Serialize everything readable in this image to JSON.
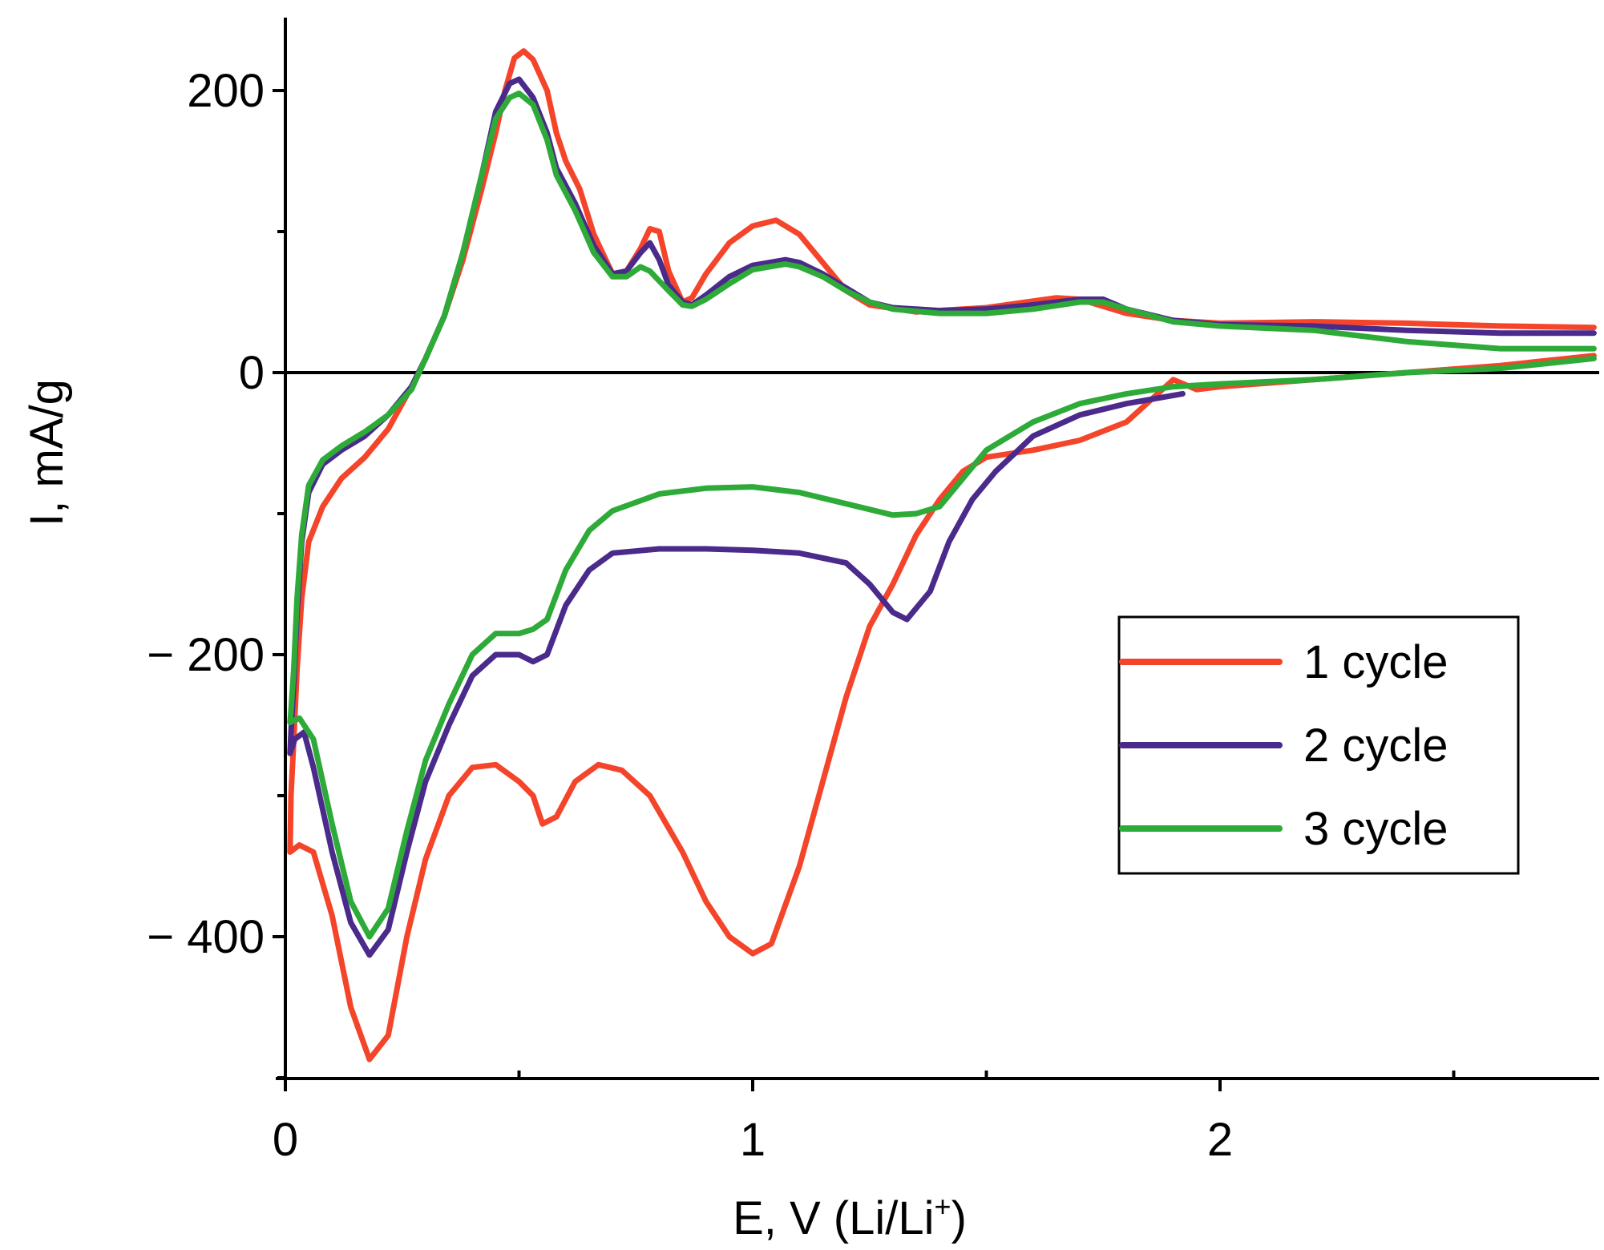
{
  "chart_data": {
    "type": "line",
    "title": "",
    "xlabel": "E, V (Li/Li",
    "xlabel_sup": "+",
    "xlabel_end": ")",
    "ylabel": "I, mA/g",
    "xlim": [
      0,
      2.8
    ],
    "ylim": [
      -500,
      250
    ],
    "x_ticks": [
      0,
      1,
      2
    ],
    "x_tick_labels": [
      "0",
      "1",
      "2"
    ],
    "x_minor_ticks": [
      0.5,
      1.5,
      2.5
    ],
    "y_ticks": [
      200,
      0,
      -200,
      -400
    ],
    "y_tick_labels": [
      "200",
      "0",
      "− 200",
      "− 400"
    ],
    "y_minor_ticks": [
      100,
      -100,
      -300,
      -500
    ],
    "zero_line": true,
    "legend": {
      "position": "right",
      "entries": [
        "1 cycle",
        "2 cycle",
        "3 cycle"
      ]
    },
    "series": [
      {
        "name": "1 cycle",
        "color": "#f4442a",
        "points": [
          [
            2.8,
            32
          ],
          [
            2.6,
            33
          ],
          [
            2.4,
            35
          ],
          [
            2.2,
            36
          ],
          [
            2.0,
            35
          ],
          [
            1.9,
            37
          ],
          [
            1.8,
            42
          ],
          [
            1.7,
            52
          ],
          [
            1.65,
            53
          ],
          [
            1.5,
            46
          ],
          [
            1.35,
            43
          ],
          [
            1.25,
            48
          ],
          [
            1.2,
            58
          ],
          [
            1.15,
            78
          ],
          [
            1.1,
            98
          ],
          [
            1.05,
            108
          ],
          [
            1.0,
            104
          ],
          [
            0.95,
            92
          ],
          [
            0.9,
            70
          ],
          [
            0.87,
            53
          ],
          [
            0.85,
            50
          ],
          [
            0.82,
            72
          ],
          [
            0.8,
            100
          ],
          [
            0.78,
            102
          ],
          [
            0.76,
            88
          ],
          [
            0.73,
            72
          ],
          [
            0.7,
            70
          ],
          [
            0.66,
            98
          ],
          [
            0.63,
            130
          ],
          [
            0.6,
            150
          ],
          [
            0.58,
            170
          ],
          [
            0.56,
            200
          ],
          [
            0.53,
            222
          ],
          [
            0.51,
            228
          ],
          [
            0.49,
            223
          ],
          [
            0.47,
            200
          ],
          [
            0.45,
            170
          ],
          [
            0.42,
            130
          ],
          [
            0.38,
            80
          ],
          [
            0.34,
            40
          ],
          [
            0.3,
            10
          ],
          [
            0.27,
            -10
          ],
          [
            0.22,
            -40
          ],
          [
            0.17,
            -60
          ],
          [
            0.12,
            -75
          ],
          [
            0.08,
            -95
          ],
          [
            0.05,
            -120
          ],
          [
            0.035,
            -160
          ],
          [
            0.025,
            -210
          ],
          [
            0.018,
            -260
          ],
          [
            0.012,
            -300
          ],
          [
            0.01,
            -340
          ],
          [
            0.03,
            -335
          ],
          [
            0.06,
            -340
          ],
          [
            0.1,
            -385
          ],
          [
            0.14,
            -450
          ],
          [
            0.18,
            -487
          ],
          [
            0.22,
            -470
          ],
          [
            0.26,
            -400
          ],
          [
            0.3,
            -345
          ],
          [
            0.35,
            -300
          ],
          [
            0.4,
            -280
          ],
          [
            0.45,
            -278
          ],
          [
            0.5,
            -290
          ],
          [
            0.53,
            -300
          ],
          [
            0.55,
            -320
          ],
          [
            0.58,
            -315
          ],
          [
            0.62,
            -290
          ],
          [
            0.67,
            -278
          ],
          [
            0.72,
            -282
          ],
          [
            0.78,
            -300
          ],
          [
            0.85,
            -340
          ],
          [
            0.9,
            -375
          ],
          [
            0.95,
            -400
          ],
          [
            1.0,
            -412
          ],
          [
            1.04,
            -405
          ],
          [
            1.1,
            -350
          ],
          [
            1.15,
            -290
          ],
          [
            1.2,
            -230
          ],
          [
            1.25,
            -180
          ],
          [
            1.3,
            -150
          ],
          [
            1.35,
            -115
          ],
          [
            1.4,
            -90
          ],
          [
            1.45,
            -70
          ],
          [
            1.5,
            -60
          ],
          [
            1.6,
            -55
          ],
          [
            1.7,
            -48
          ],
          [
            1.8,
            -35
          ],
          [
            1.85,
            -20
          ],
          [
            1.9,
            -5
          ],
          [
            1.95,
            -12
          ],
          [
            2.0,
            -10
          ],
          [
            2.2,
            -5
          ],
          [
            2.4,
            0
          ],
          [
            2.6,
            5
          ],
          [
            2.8,
            12
          ]
        ]
      },
      {
        "name": "2 cycle",
        "color": "#4a2a8a",
        "points": [
          [
            2.8,
            28
          ],
          [
            2.6,
            28
          ],
          [
            2.4,
            30
          ],
          [
            2.2,
            33
          ],
          [
            2.0,
            34
          ],
          [
            1.9,
            37
          ],
          [
            1.8,
            45
          ],
          [
            1.75,
            52
          ],
          [
            1.7,
            52
          ],
          [
            1.6,
            48
          ],
          [
            1.5,
            45
          ],
          [
            1.4,
            44
          ],
          [
            1.3,
            46
          ],
          [
            1.25,
            50
          ],
          [
            1.2,
            60
          ],
          [
            1.15,
            70
          ],
          [
            1.1,
            78
          ],
          [
            1.07,
            80
          ],
          [
            1.0,
            76
          ],
          [
            0.95,
            68
          ],
          [
            0.9,
            55
          ],
          [
            0.87,
            48
          ],
          [
            0.85,
            50
          ],
          [
            0.82,
            62
          ],
          [
            0.8,
            80
          ],
          [
            0.78,
            92
          ],
          [
            0.76,
            85
          ],
          [
            0.73,
            72
          ],
          [
            0.7,
            70
          ],
          [
            0.66,
            90
          ],
          [
            0.62,
            120
          ],
          [
            0.58,
            145
          ],
          [
            0.56,
            170
          ],
          [
            0.53,
            195
          ],
          [
            0.5,
            208
          ],
          [
            0.48,
            205
          ],
          [
            0.45,
            185
          ],
          [
            0.42,
            140
          ],
          [
            0.38,
            85
          ],
          [
            0.34,
            40
          ],
          [
            0.3,
            10
          ],
          [
            0.27,
            -10
          ],
          [
            0.22,
            -30
          ],
          [
            0.17,
            -45
          ],
          [
            0.12,
            -55
          ],
          [
            0.08,
            -65
          ],
          [
            0.05,
            -85
          ],
          [
            0.035,
            -120
          ],
          [
            0.025,
            -170
          ],
          [
            0.018,
            -220
          ],
          [
            0.012,
            -255
          ],
          [
            0.01,
            -270
          ],
          [
            0.02,
            -260
          ],
          [
            0.04,
            -255
          ],
          [
            0.06,
            -280
          ],
          [
            0.1,
            -340
          ],
          [
            0.14,
            -390
          ],
          [
            0.18,
            -413
          ],
          [
            0.22,
            -395
          ],
          [
            0.26,
            -340
          ],
          [
            0.3,
            -290
          ],
          [
            0.35,
            -250
          ],
          [
            0.4,
            -215
          ],
          [
            0.45,
            -200
          ],
          [
            0.5,
            -200
          ],
          [
            0.53,
            -205
          ],
          [
            0.56,
            -200
          ],
          [
            0.6,
            -165
          ],
          [
            0.65,
            -140
          ],
          [
            0.7,
            -128
          ],
          [
            0.8,
            -125
          ],
          [
            0.9,
            -125
          ],
          [
            1.0,
            -126
          ],
          [
            1.1,
            -128
          ],
          [
            1.2,
            -135
          ],
          [
            1.25,
            -150
          ],
          [
            1.3,
            -170
          ],
          [
            1.33,
            -175
          ],
          [
            1.38,
            -155
          ],
          [
            1.42,
            -120
          ],
          [
            1.47,
            -90
          ],
          [
            1.52,
            -70
          ],
          [
            1.6,
            -45
          ],
          [
            1.7,
            -30
          ],
          [
            1.8,
            -22
          ],
          [
            1.92,
            -15
          ]
        ]
      },
      {
        "name": "3 cycle",
        "color": "#2daa38",
        "points": [
          [
            2.8,
            17
          ],
          [
            2.6,
            17
          ],
          [
            2.4,
            22
          ],
          [
            2.2,
            30
          ],
          [
            2.0,
            33
          ],
          [
            1.9,
            36
          ],
          [
            1.8,
            45
          ],
          [
            1.75,
            50
          ],
          [
            1.7,
            50
          ],
          [
            1.6,
            45
          ],
          [
            1.5,
            42
          ],
          [
            1.4,
            42
          ],
          [
            1.3,
            45
          ],
          [
            1.25,
            50
          ],
          [
            1.2,
            58
          ],
          [
            1.15,
            68
          ],
          [
            1.1,
            75
          ],
          [
            1.07,
            77
          ],
          [
            1.0,
            73
          ],
          [
            0.95,
            63
          ],
          [
            0.9,
            52
          ],
          [
            0.87,
            47
          ],
          [
            0.85,
            48
          ],
          [
            0.82,
            58
          ],
          [
            0.78,
            72
          ],
          [
            0.76,
            75
          ],
          [
            0.73,
            68
          ],
          [
            0.7,
            68
          ],
          [
            0.66,
            85
          ],
          [
            0.62,
            115
          ],
          [
            0.58,
            140
          ],
          [
            0.56,
            165
          ],
          [
            0.53,
            190
          ],
          [
            0.5,
            198
          ],
          [
            0.48,
            195
          ],
          [
            0.45,
            180
          ],
          [
            0.42,
            140
          ],
          [
            0.38,
            85
          ],
          [
            0.34,
            40
          ],
          [
            0.3,
            10
          ],
          [
            0.27,
            -12
          ],
          [
            0.22,
            -30
          ],
          [
            0.17,
            -42
          ],
          [
            0.12,
            -52
          ],
          [
            0.08,
            -62
          ],
          [
            0.05,
            -80
          ],
          [
            0.035,
            -115
          ],
          [
            0.025,
            -160
          ],
          [
            0.018,
            -210
          ],
          [
            0.012,
            -240
          ],
          [
            0.01,
            -248
          ],
          [
            0.03,
            -245
          ],
          [
            0.06,
            -260
          ],
          [
            0.1,
            -320
          ],
          [
            0.14,
            -375
          ],
          [
            0.18,
            -400
          ],
          [
            0.22,
            -380
          ],
          [
            0.26,
            -325
          ],
          [
            0.3,
            -275
          ],
          [
            0.35,
            -235
          ],
          [
            0.4,
            -200
          ],
          [
            0.45,
            -185
          ],
          [
            0.5,
            -185
          ],
          [
            0.53,
            -182
          ],
          [
            0.56,
            -175
          ],
          [
            0.6,
            -140
          ],
          [
            0.65,
            -112
          ],
          [
            0.7,
            -98
          ],
          [
            0.8,
            -86
          ],
          [
            0.9,
            -82
          ],
          [
            1.0,
            -81
          ],
          [
            1.1,
            -85
          ],
          [
            1.2,
            -93
          ],
          [
            1.3,
            -101
          ],
          [
            1.35,
            -100
          ],
          [
            1.4,
            -95
          ],
          [
            1.45,
            -75
          ],
          [
            1.5,
            -55
          ],
          [
            1.6,
            -35
          ],
          [
            1.7,
            -22
          ],
          [
            1.8,
            -15
          ],
          [
            1.9,
            -10
          ],
          [
            2.0,
            -8
          ],
          [
            2.2,
            -5
          ],
          [
            2.4,
            0
          ],
          [
            2.6,
            3
          ],
          [
            2.8,
            10
          ]
        ]
      }
    ]
  }
}
